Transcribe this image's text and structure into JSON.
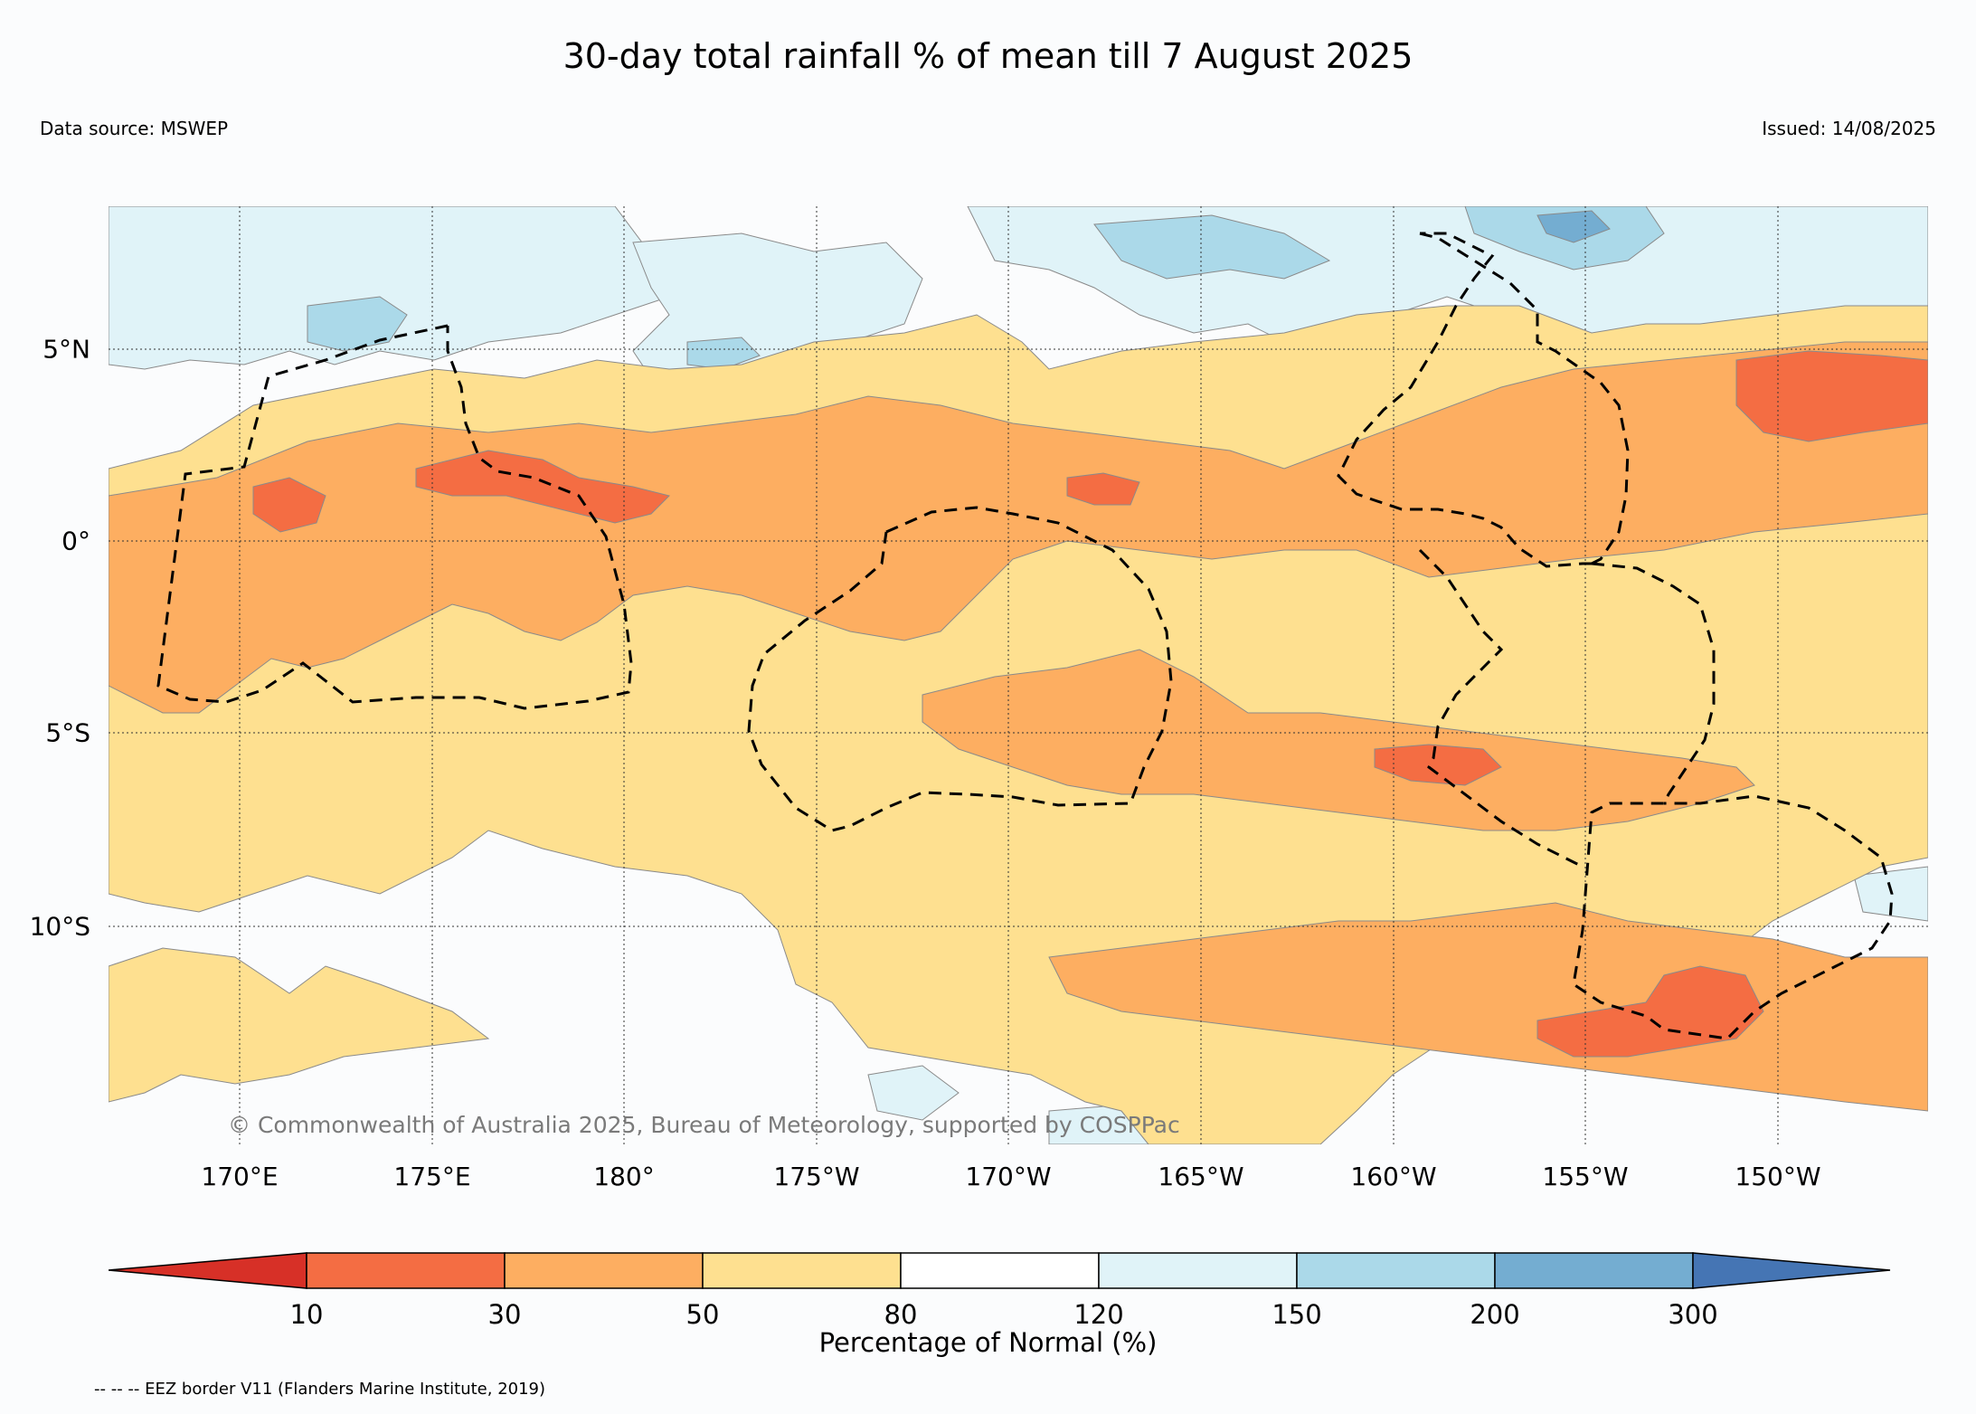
{
  "title": "30-day total rainfall % of mean till 7 August 2025",
  "data_source": "Data source: MSWEP",
  "issued": "Issued: 14/08/2025",
  "copyright": "© Commonwealth of Australia 2025, Bureau of Meteorology, supported by COSPPac",
  "longitude_labels": [
    "170°E",
    "175°E",
    "180°",
    "175°W",
    "170°W",
    "165°W",
    "160°W",
    "155°W",
    "150°W"
  ],
  "latitude_labels": [
    "5°N",
    "0°",
    "5°S",
    "10°S"
  ],
  "colorbar": {
    "label": "Percentage of Normal (%)",
    "ticks": [
      "10",
      "30",
      "50",
      "80",
      "120",
      "150",
      "200",
      "300"
    ],
    "colors": [
      "#d73027",
      "#f46d43",
      "#fdae61",
      "#fee090",
      "#ffffff",
      "#e0f3f8",
      "#abd9e9",
      "#74add1",
      "#4575b4"
    ]
  },
  "legend_note": "-- -- -- EEZ border V11 (Flanders Marine Institute, 2019)",
  "map_palette": {
    "below_30": "#f46d43",
    "30_50": "#fdae61",
    "50_80": "#fee090",
    "80_120": "#fbfcfd",
    "120_150": "#e0f3f8",
    "150_200": "#abd9e9",
    "200_300": "#74add1"
  }
}
